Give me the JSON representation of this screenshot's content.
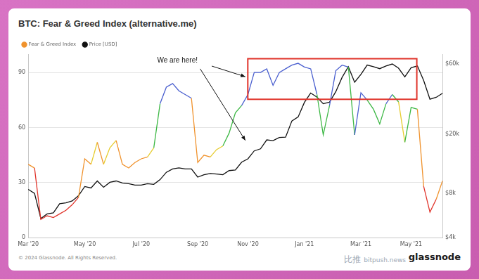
{
  "page": {
    "footer": "© 2024 Glassnode. All Rights Reserved.",
    "logo": "glassnode",
    "watermark": [
      "比推",
      "bitpush.news"
    ]
  },
  "chart_data": {
    "type": "line",
    "title": "BTC: Fear & Greed Index (alternative.me)",
    "annotations": [
      "We are here!"
    ],
    "categories": [
      "Mar '20",
      null,
      null,
      null,
      null,
      null,
      null,
      null,
      null,
      "May '20",
      null,
      null,
      null,
      null,
      null,
      null,
      null,
      null,
      "Jul '20",
      null,
      null,
      null,
      null,
      null,
      null,
      null,
      null,
      "Sep '20",
      null,
      null,
      null,
      null,
      null,
      null,
      null,
      "Nov '20",
      null,
      null,
      null,
      null,
      null,
      null,
      null,
      null,
      "Jan '21",
      null,
      null,
      null,
      null,
      null,
      null,
      null,
      null,
      "Mar '21",
      null,
      null,
      null,
      null,
      null,
      null,
      null,
      "May '21",
      null,
      null,
      null,
      null,
      null
    ],
    "series": [
      {
        "name": "Fear & Greed Index",
        "color": "#f0922c",
        "values": [
          40,
          38,
          10,
          12,
          11,
          13,
          15,
          18,
          22,
          43,
          40,
          52,
          40,
          49,
          53,
          40,
          38,
          41,
          43,
          44,
          49,
          73,
          82,
          84,
          80,
          78,
          76,
          41,
          45,
          44,
          48,
          50,
          57,
          68,
          72,
          78,
          90,
          90,
          92,
          83,
          90,
          92,
          94,
          95,
          93,
          92,
          78,
          56,
          72,
          91,
          94,
          93,
          56,
          79,
          75,
          70,
          62,
          73,
          78,
          74,
          52,
          71,
          70,
          28,
          14,
          21,
          31
        ],
        "colors": [
          "#f0922c",
          "#f0922c",
          "#e0332a",
          "#e0332a",
          "#e0332a",
          "#e0332a",
          "#e0332a",
          "#e0332a",
          "#e0332a",
          "#f0922c",
          "#f0922c",
          "#e6cc2e",
          "#f0922c",
          "#e6cc2e",
          "#e6cc2e",
          "#f0922c",
          "#f0922c",
          "#f0922c",
          "#f0922c",
          "#f0922c",
          "#e6cc2e",
          "#3db845",
          "#4a5fcf",
          "#4a5fcf",
          "#4a5fcf",
          "#4a5fcf",
          "#4a5fcf",
          "#f0922c",
          "#f0922c",
          "#f0922c",
          "#e6cc2e",
          "#e6cc2e",
          "#3db845",
          "#3db845",
          "#3db845",
          "#4a5fcf",
          "#4a5fcf",
          "#4a5fcf",
          "#4a5fcf",
          "#4a5fcf",
          "#4a5fcf",
          "#4a5fcf",
          "#4a5fcf",
          "#4a5fcf",
          "#4a5fcf",
          "#4a5fcf",
          "#4a5fcf",
          "#3db845",
          "#3db845",
          "#4a5fcf",
          "#4a5fcf",
          "#4a5fcf",
          "#3db845",
          "#4a5fcf",
          "#4a5fcf",
          "#3db845",
          "#3db845",
          "#3db845",
          "#4a5fcf",
          "#3db845",
          "#e6cc2e",
          "#3db845",
          "#3db845",
          "#f0922c",
          "#e0332a",
          "#e0332a",
          "#f0922c"
        ]
      },
      {
        "name": "Price [USD]",
        "color": "#111111",
        "axis": "y2",
        "values": [
          8500,
          8000,
          5400,
          5800,
          5900,
          6800,
          6900,
          7100,
          7700,
          8900,
          8700,
          9700,
          8800,
          9500,
          9700,
          9400,
          9300,
          9100,
          9100,
          9300,
          9200,
          9900,
          11100,
          11700,
          11900,
          11700,
          11700,
          10300,
          10700,
          10900,
          10800,
          10700,
          11400,
          11500,
          13000,
          13700,
          15500,
          16000,
          18400,
          18200,
          19100,
          19200,
          24700,
          26300,
          33000,
          38200,
          35800,
          32300,
          33100,
          39000,
          48700,
          57500,
          45200,
          51000,
          59000,
          57500,
          55800,
          58200,
          60000,
          56200,
          49100,
          56600,
          58200,
          46400,
          34700,
          35700,
          38000
        ]
      }
    ],
    "ylim": [
      0,
      100
    ],
    "yticks": [
      0,
      30,
      60,
      90
    ],
    "y2lim": [
      4000,
      70000
    ],
    "y2ticks": [
      {
        "value": 4000,
        "label": "$4k"
      },
      {
        "value": 8000,
        "label": "$8k"
      },
      {
        "value": 20000,
        "label": "$20k"
      },
      {
        "value": 60000,
        "label": "$60k"
      }
    ],
    "log": "y2",
    "grid": true,
    "legend": "top-left"
  }
}
